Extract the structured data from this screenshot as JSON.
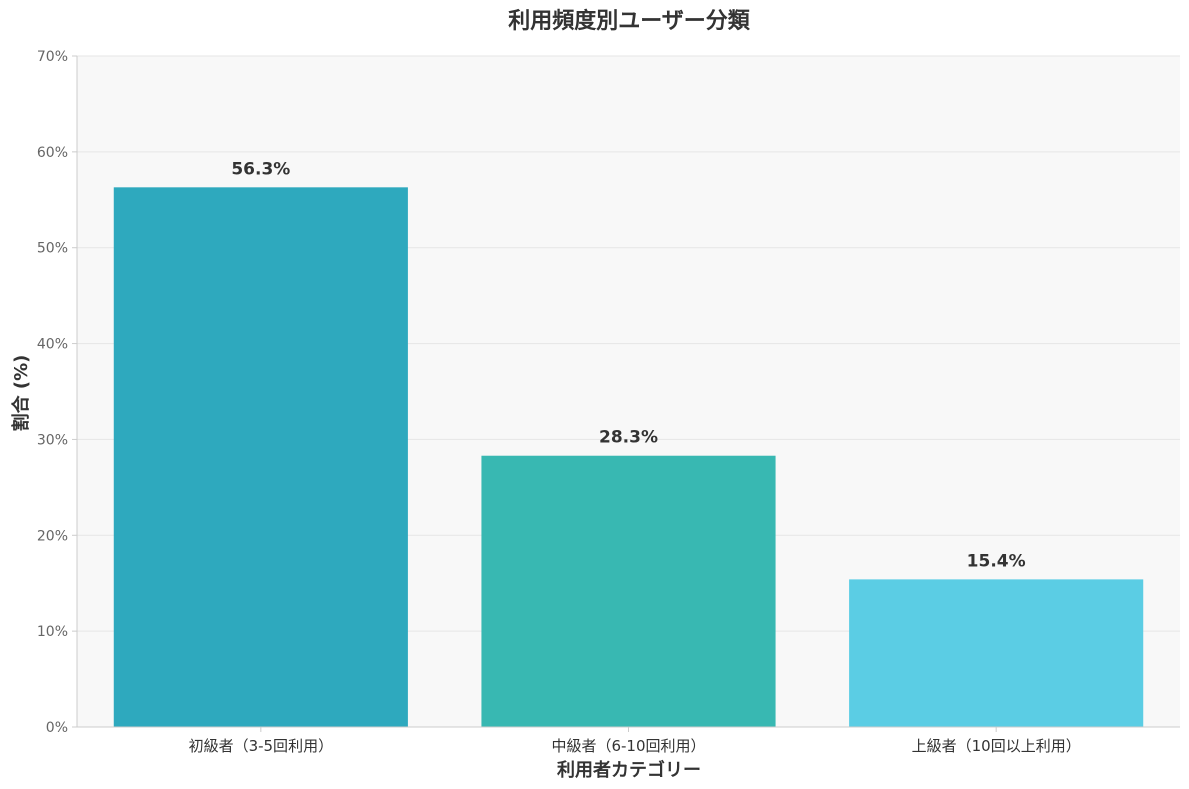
{
  "chart_data": {
    "type": "bar",
    "title": "利用頻度別ユーザー分類",
    "xlabel": "利用者カテゴリー",
    "ylabel": "割合 (%)",
    "categories": [
      "初級者（3-5回利用）",
      "中級者（6-10回利用）",
      "上級者（10回以上利用）"
    ],
    "values": [
      56.3,
      28.3,
      15.4
    ],
    "value_labels": [
      "56.3%",
      "28.3%",
      "15.4%"
    ],
    "bar_colors": [
      "#2ea9be",
      "#38b8b2",
      "#5bcde4"
    ],
    "ylim": [
      0,
      70
    ],
    "yticks": [
      0,
      10,
      20,
      30,
      40,
      50,
      60,
      70
    ],
    "ytick_labels": [
      "0%",
      "10%",
      "20%",
      "30%",
      "40%",
      "50%",
      "60%",
      "70%"
    ],
    "grid": true,
    "plot_background": "#f8f8f8",
    "grid_color": "#e6e6e6",
    "axis_color": "#cccccc"
  }
}
